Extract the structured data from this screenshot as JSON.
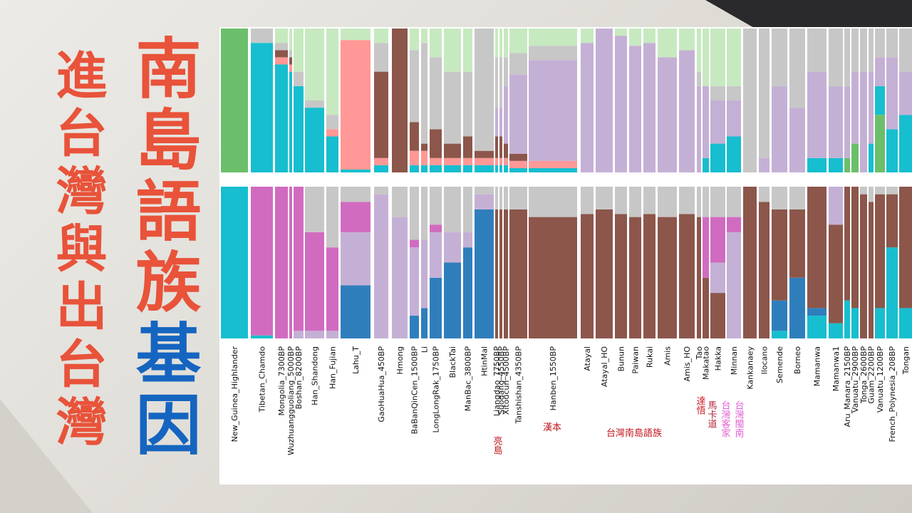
{
  "headline": {
    "main_red": "南島語族",
    "main_blue": "基因",
    "sub": "進台灣與出台灣"
  },
  "annotations": [
    {
      "text": "亮島",
      "color": "#c0141c"
    },
    {
      "text": "漢本",
      "color": "#c0141c"
    },
    {
      "text": "台灣南島語族",
      "color": "#c0141c"
    },
    {
      "text": "達悟",
      "color": "#d0202a"
    },
    {
      "text": "馬卡道",
      "color": "#b0283c"
    },
    {
      "text": "台灣客家",
      "color": "#e060d0"
    },
    {
      "text": "台灣閩南",
      "color": "#e060d0"
    }
  ],
  "chart_data": [
    {
      "type": "stacked_bar",
      "series": [
        {
          "color": "#6bbf6b",
          "values": [
            100,
            0,
            0,
            0,
            0,
            0,
            0,
            0,
            0,
            0,
            0,
            0,
            0,
            0,
            0,
            0,
            0,
            0,
            0,
            0,
            0,
            0,
            0,
            0,
            0,
            0,
            0,
            0,
            0,
            0,
            0,
            0,
            0,
            0,
            0,
            0,
            0,
            0,
            10,
            20,
            0,
            0,
            40,
            0,
            0
          ]
        },
        {
          "color": "#17becf",
          "values": [
            0,
            90,
            75,
            70,
            60,
            45,
            25,
            2,
            5,
            0,
            5,
            5,
            5,
            5,
            5,
            5,
            5,
            5,
            5,
            3,
            3,
            0,
            0,
            0,
            0,
            0,
            0,
            0,
            0,
            10,
            20,
            25,
            0,
            0,
            0,
            0,
            10,
            10,
            0,
            0,
            0,
            20,
            20,
            30,
            40
          ]
        },
        {
          "color": "#ff9896",
          "values": [
            0,
            0,
            5,
            5,
            0,
            0,
            5,
            90,
            5,
            0,
            10,
            10,
            5,
            5,
            5,
            5,
            5,
            5,
            5,
            5,
            5,
            0,
            0,
            0,
            0,
            0,
            0,
            0,
            0,
            0,
            0,
            0,
            0,
            0,
            0,
            0,
            0,
            0,
            0,
            0,
            0,
            0,
            0,
            0,
            0
          ]
        },
        {
          "color": "#8c564b",
          "values": [
            0,
            0,
            5,
            5,
            0,
            0,
            0,
            0,
            60,
            100,
            20,
            5,
            20,
            10,
            15,
            5,
            15,
            15,
            10,
            5,
            0,
            0,
            0,
            0,
            0,
            0,
            0,
            0,
            0,
            0,
            0,
            0,
            0,
            0,
            0,
            0,
            0,
            0,
            0,
            0,
            0,
            0,
            0,
            0,
            0
          ]
        },
        {
          "color": "#c5b0d5",
          "values": [
            0,
            0,
            0,
            0,
            0,
            0,
            0,
            0,
            0,
            0,
            0,
            0,
            0,
            0,
            0,
            0,
            20,
            20,
            40,
            55,
            70,
            90,
            100,
            95,
            88,
            90,
            80,
            85,
            60,
            50,
            30,
            25,
            0,
            10,
            60,
            45,
            60,
            50,
            50,
            50,
            70,
            50,
            20,
            50,
            30
          ]
        },
        {
          "color": "#c7c7c7",
          "values": [
            0,
            10,
            5,
            5,
            10,
            5,
            10,
            0,
            20,
            0,
            50,
            70,
            50,
            50,
            45,
            85,
            35,
            35,
            20,
            15,
            10,
            0,
            0,
            0,
            0,
            0,
            0,
            0,
            10,
            0,
            10,
            10,
            100,
            90,
            40,
            55,
            30,
            40,
            40,
            30,
            30,
            30,
            20,
            20,
            30
          ]
        },
        {
          "color": "#c7e9c0",
          "values": [
            0,
            0,
            10,
            15,
            30,
            50,
            60,
            8,
            10,
            0,
            15,
            10,
            20,
            30,
            30,
            0,
            20,
            20,
            20,
            17,
            12,
            10,
            0,
            5,
            12,
            10,
            20,
            15,
            30,
            40,
            40,
            40,
            0,
            0,
            0,
            0,
            0,
            0,
            0,
            0,
            0,
            0,
            0,
            0,
            0
          ]
        }
      ],
      "ylim": [
        0,
        100
      ]
    },
    {
      "type": "stacked_bar",
      "categories": [
        "New_Guinea_Highlander",
        "Tibetan_Chamdo",
        "Mongolia_7300BP",
        "Wuzhuangguoliang_5000BP",
        "Boshan_8200BP",
        "Han_Shandong",
        "Han_Fujian",
        "Lahu_T",
        "GaoHuaHua_450BP",
        "Hmong",
        "BaBanQinCen_1500BP",
        "Li",
        "LongLongRak_1750BP",
        "BlackTai",
        "ManBac_3800BP",
        "HtinMal",
        "Liangdao_7750BP",
        "Suogang_4550BP",
        "Xitoucun_4500BP",
        "Tanshishan_4350BP",
        "Hanben_1550BP",
        "Atayal",
        "Atayal_HO",
        "Bunun",
        "Paiwan",
        "Rukai",
        "Amis",
        "Amis_HO",
        "Tao",
        "Makatao",
        "Hakka",
        "Minnan",
        "Kankanaey",
        "Ilocano",
        "Semende",
        "Borneo",
        "Mamanwa",
        "Mamanwa1",
        "Aru_Manara_2150BP",
        "Vanuatu_2900BP",
        "Tonga_2600BP",
        "Guam_2200BP",
        "Vanuatu_1200BP",
        "French_Polynesia_208BP",
        "Tongan"
      ],
      "series": [
        {
          "color": "#17becf",
          "values": [
            100,
            2,
            0,
            0,
            0,
            0,
            0,
            0,
            0,
            0,
            0,
            0,
            0,
            0,
            0,
            0,
            0,
            0,
            0,
            0,
            0,
            0,
            0,
            0,
            0,
            0,
            0,
            0,
            0,
            0,
            0,
            0,
            0,
            0,
            5,
            0,
            15,
            10,
            25,
            20,
            0,
            0,
            20,
            60,
            20
          ]
        },
        {
          "color": "#2f7ebc",
          "values": [
            0,
            0,
            0,
            0,
            0,
            0,
            0,
            35,
            0,
            0,
            15,
            20,
            40,
            50,
            60,
            85,
            0,
            0,
            0,
            0,
            0,
            0,
            0,
            0,
            0,
            0,
            0,
            0,
            0,
            0,
            0,
            0,
            0,
            0,
            20,
            40,
            5,
            0,
            0,
            0,
            0,
            0,
            0,
            0,
            0
          ]
        },
        {
          "color": "#8c564b",
          "values": [
            0,
            0,
            0,
            0,
            0,
            0,
            0,
            0,
            0,
            0,
            0,
            0,
            0,
            0,
            0,
            0,
            85,
            85,
            85,
            85,
            80,
            82,
            85,
            82,
            80,
            82,
            80,
            82,
            80,
            40,
            30,
            0,
            100,
            90,
            60,
            45,
            80,
            65,
            75,
            80,
            95,
            90,
            75,
            35,
            80
          ]
        },
        {
          "color": "#c5b0d5",
          "values": [
            0,
            0,
            0,
            0,
            5,
            5,
            5,
            35,
            95,
            80,
            45,
            45,
            30,
            20,
            10,
            10,
            0,
            0,
            0,
            0,
            0,
            0,
            0,
            0,
            0,
            0,
            0,
            0,
            0,
            0,
            20,
            70,
            0,
            0,
            0,
            0,
            0,
            25,
            0,
            0,
            0,
            0,
            0,
            0,
            0
          ]
        },
        {
          "color": "#d16bc0",
          "values": [
            0,
            98,
            100,
            100,
            95,
            65,
            55,
            20,
            0,
            0,
            5,
            0,
            5,
            0,
            0,
            0,
            0,
            0,
            0,
            0,
            0,
            0,
            0,
            0,
            0,
            0,
            0,
            0,
            0,
            40,
            30,
            10,
            0,
            0,
            0,
            0,
            0,
            0,
            0,
            0,
            0,
            0,
            0,
            0,
            0
          ]
        },
        {
          "color": "#c7c7c7",
          "values": [
            0,
            0,
            0,
            0,
            0,
            30,
            40,
            10,
            5,
            20,
            35,
            35,
            25,
            30,
            30,
            5,
            15,
            15,
            15,
            15,
            20,
            18,
            15,
            18,
            20,
            18,
            20,
            18,
            20,
            20,
            20,
            20,
            0,
            10,
            15,
            15,
            0,
            0,
            0,
            0,
            5,
            10,
            5,
            5,
            0
          ]
        }
      ],
      "ylim": [
        0,
        100
      ]
    }
  ]
}
